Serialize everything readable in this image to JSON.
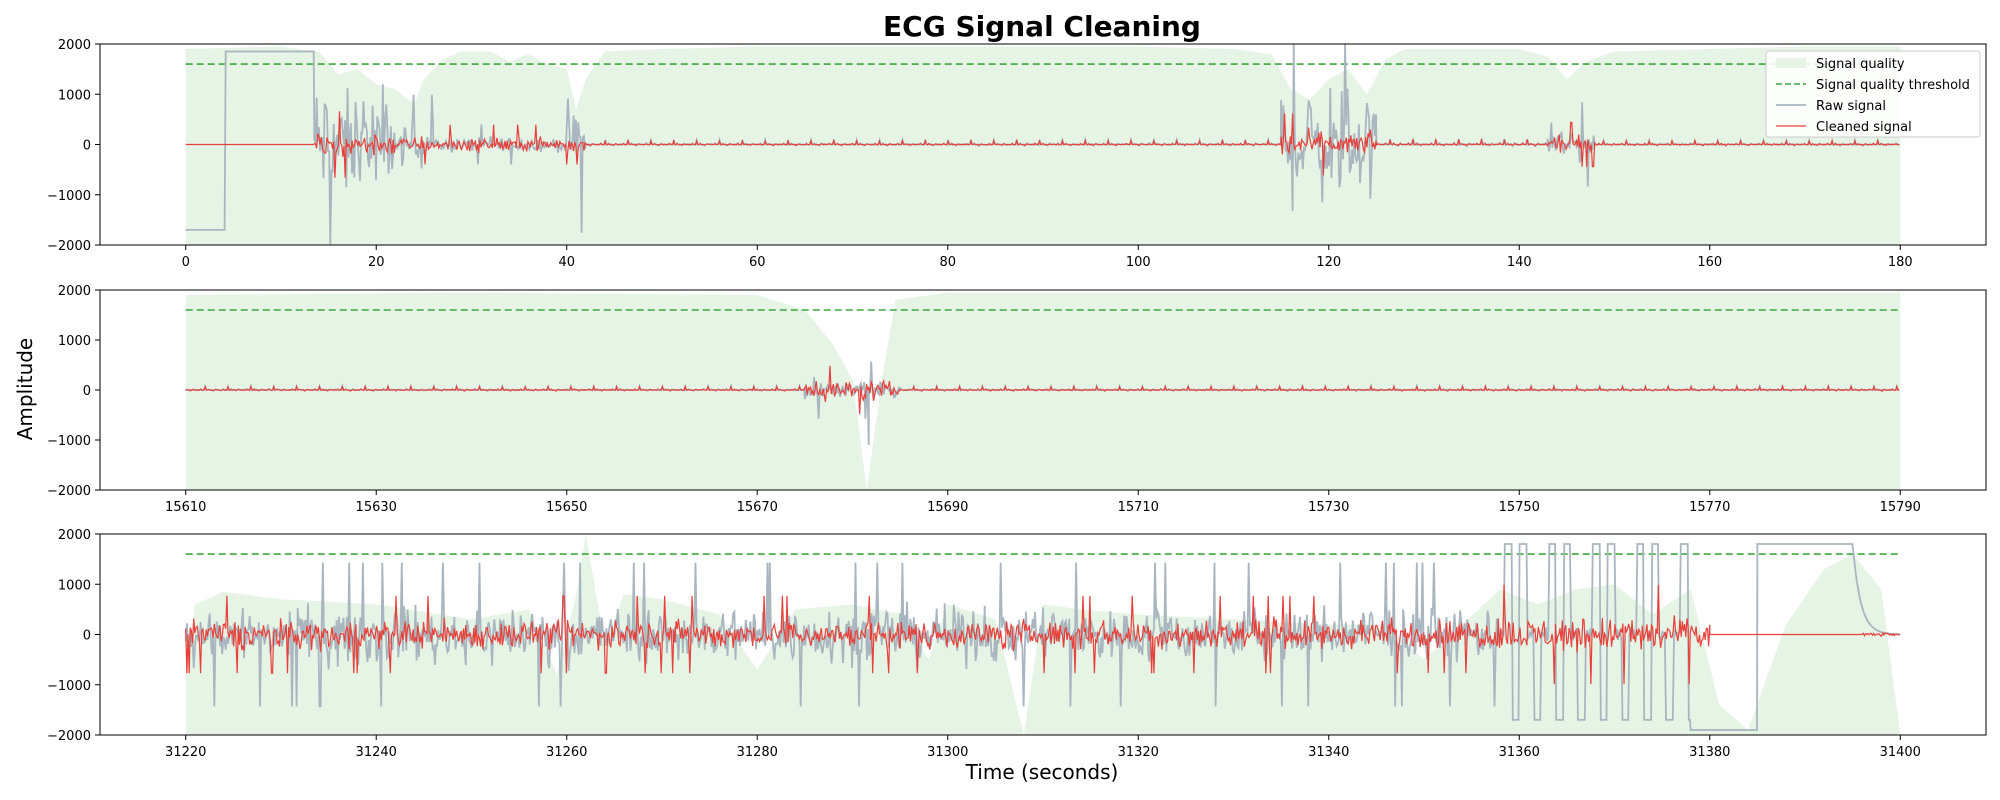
{
  "chart_data": {
    "type": "line",
    "title": "ECG Signal Cleaning",
    "xlabel": "Time (seconds)",
    "ylabel": "Amplitude",
    "grid": false,
    "legend_placement": "top-right",
    "legend": [
      "Signal quality",
      "Signal quality threshold",
      "Raw signal",
      "Cleaned signal"
    ],
    "colors": {
      "signal_quality_fill": "#e6f4e6",
      "threshold": "#3da83d",
      "raw": "#a9b6bf",
      "cleaned": "#e8403a"
    },
    "panels": [
      {
        "xlim": [
          -9,
          189
        ],
        "ylim": [
          -2000,
          2000
        ],
        "xticks": [
          0,
          20,
          40,
          60,
          80,
          100,
          120,
          140,
          160,
          180
        ],
        "xtick_labels": [
          "0",
          "20",
          "40",
          "60",
          "80",
          "100",
          "120",
          "140",
          "160",
          "180"
        ],
        "yticks": [
          -2000,
          -1000,
          0,
          1000,
          2000
        ],
        "ytick_labels": [
          "−2000",
          "−1000",
          "0",
          "1000",
          "2000"
        ],
        "x_range": [
          0,
          180
        ],
        "threshold": 1600,
        "quality": [
          [
            0,
            1900
          ],
          [
            10,
            1950
          ],
          [
            14,
            1850
          ],
          [
            16,
            1400
          ],
          [
            18,
            1500
          ],
          [
            20,
            1200
          ],
          [
            22,
            1100
          ],
          [
            24,
            800
          ],
          [
            25,
            1300
          ],
          [
            27,
            1700
          ],
          [
            29,
            1850
          ],
          [
            32,
            1850
          ],
          [
            34,
            1650
          ],
          [
            36,
            1800
          ],
          [
            38,
            1600
          ],
          [
            40,
            1500
          ],
          [
            41,
            700
          ],
          [
            42,
            1300
          ],
          [
            44,
            1850
          ],
          [
            50,
            1900
          ],
          [
            60,
            1950
          ],
          [
            80,
            1950
          ],
          [
            100,
            1950
          ],
          [
            110,
            1900
          ],
          [
            114,
            1800
          ],
          [
            116,
            1100
          ],
          [
            118,
            900
          ],
          [
            120,
            1300
          ],
          [
            122,
            1500
          ],
          [
            124,
            1000
          ],
          [
            126,
            1700
          ],
          [
            128,
            1900
          ],
          [
            140,
            1900
          ],
          [
            143,
            1750
          ],
          [
            145,
            1300
          ],
          [
            147,
            1650
          ],
          [
            150,
            1850
          ],
          [
            160,
            1900
          ],
          [
            170,
            1950
          ],
          [
            180,
            1950
          ]
        ],
        "raw_segments": [
          [
            0,
            13.5,
            [
              4.2,
              -1700,
              1850
            ],
            "flat"
          ],
          [
            13.5,
            22,
            1300,
            "noisy"
          ],
          [
            22,
            26,
            450,
            "noisy"
          ],
          [
            26,
            40,
            180,
            "noisy"
          ],
          [
            40,
            42,
            800,
            "noisy"
          ],
          [
            42,
            115,
            160,
            "ecg"
          ],
          [
            115,
            125,
            1350,
            "noisy"
          ],
          [
            125,
            143,
            200,
            "ecg"
          ],
          [
            143,
            148,
            380,
            "noisy"
          ],
          [
            148,
            180,
            140,
            "ecg"
          ]
        ],
        "clean_segments": [
          [
            0,
            13.5,
            0,
            "flat"
          ],
          [
            13.5,
            22,
            300,
            "noisy"
          ],
          [
            22,
            42,
            180,
            "noisy"
          ],
          [
            42,
            115,
            130,
            "ecg"
          ],
          [
            115,
            125,
            280,
            "noisy"
          ],
          [
            125,
            143,
            170,
            "ecg"
          ],
          [
            143,
            148,
            200,
            "noisy"
          ],
          [
            148,
            180,
            130,
            "ecg"
          ]
        ]
      },
      {
        "xlim": [
          15601,
          15799
        ],
        "ylim": [
          -2000,
          2000
        ],
        "xticks": [
          15610,
          15630,
          15650,
          15670,
          15690,
          15710,
          15730,
          15750,
          15770,
          15790
        ],
        "xtick_labels": [
          "15610",
          "15630",
          "15650",
          "15670",
          "15690",
          "15710",
          "15730",
          "15750",
          "15770",
          "15790"
        ],
        "yticks": [
          -2000,
          -1000,
          0,
          1000,
          2000
        ],
        "ytick_labels": [
          "−2000",
          "−1000",
          "0",
          "1000",
          "2000"
        ],
        "x_range": [
          15610,
          15790
        ],
        "threshold": 1600,
        "quality": [
          [
            15610,
            1900
          ],
          [
            15640,
            1950
          ],
          [
            15670,
            1900
          ],
          [
            15675,
            1600
          ],
          [
            15678,
            900
          ],
          [
            15680,
            200
          ],
          [
            15681.5,
            -2000
          ],
          [
            15683,
            100
          ],
          [
            15684.5,
            1800
          ],
          [
            15690,
            1950
          ],
          [
            15720,
            1950
          ],
          [
            15760,
            1950
          ],
          [
            15790,
            1950
          ]
        ],
        "raw_segments": [
          [
            15610,
            15675,
            130,
            "ecg"
          ],
          [
            15675,
            15685,
            260,
            "noisy"
          ],
          [
            15685,
            15790,
            130,
            "ecg"
          ]
        ],
        "clean_segments": [
          [
            15610,
            15675,
            120,
            "ecg"
          ],
          [
            15675,
            15685,
            220,
            "noisy"
          ],
          [
            15685,
            15790,
            120,
            "ecg"
          ]
        ],
        "spikes": [
          [
            15681.7,
            -1100
          ]
        ]
      },
      {
        "xlim": [
          31211,
          31409
        ],
        "ylim": [
          -2000,
          2000
        ],
        "xticks": [
          31220,
          31240,
          31260,
          31280,
          31300,
          31320,
          31340,
          31360,
          31380,
          31400
        ],
        "xtick_labels": [
          "31220",
          "31240",
          "31260",
          "31280",
          "31300",
          "31320",
          "31340",
          "31360",
          "31380",
          "31400"
        ],
        "yticks": [
          -2000,
          -1000,
          0,
          1000,
          2000
        ],
        "ytick_labels": [
          "−2000",
          "−1000",
          "0",
          "1000",
          "2000"
        ],
        "x_range": [
          31220,
          31400
        ],
        "threshold": 1600,
        "quality": [
          [
            31220,
            -800
          ],
          [
            31221,
            600
          ],
          [
            31224,
            850
          ],
          [
            31230,
            700
          ],
          [
            31240,
            600
          ],
          [
            31250,
            300
          ],
          [
            31256,
            500
          ],
          [
            31259,
            -800
          ],
          [
            31261,
            800
          ],
          [
            31262,
            2000
          ],
          [
            31264,
            -200
          ],
          [
            31266,
            800
          ],
          [
            31270,
            700
          ],
          [
            31276,
            400
          ],
          [
            31280,
            -700
          ],
          [
            31284,
            500
          ],
          [
            31290,
            600
          ],
          [
            31295,
            400
          ],
          [
            31298,
            -500
          ],
          [
            31300,
            600
          ],
          [
            31305,
            300
          ],
          [
            31308,
            -2000
          ],
          [
            31310,
            600
          ],
          [
            31314,
            500
          ],
          [
            31320,
            400
          ],
          [
            31330,
            300
          ],
          [
            31340,
            200
          ],
          [
            31346,
            200
          ],
          [
            31350,
            -500
          ],
          [
            31354,
            200
          ],
          [
            31358,
            900
          ],
          [
            31362,
            600
          ],
          [
            31366,
            900
          ],
          [
            31370,
            1000
          ],
          [
            31374,
            400
          ],
          [
            31378,
            900
          ],
          [
            31381,
            -1400
          ],
          [
            31384,
            -1900
          ],
          [
            31388,
            200
          ],
          [
            31392,
            1300
          ],
          [
            31395,
            1600
          ],
          [
            31398,
            900
          ],
          [
            31400,
            -2000
          ]
        ],
        "raw_segments": [
          [
            31220,
            31358,
            650,
            "noisy"
          ],
          [
            31358,
            31378,
            1800,
            "square"
          ],
          [
            31378,
            31385,
            [
              31385,
              -1900,
              1800
            ],
            "flat"
          ],
          [
            31385,
            31400,
            [
              31395,
              1800,
              0
            ],
            "decay"
          ]
        ],
        "clean_segments": [
          [
            31220,
            31356,
            350,
            "noisy"
          ],
          [
            31356,
            31380,
            450,
            "noisy"
          ],
          [
            31380,
            31396,
            0,
            "flat"
          ],
          [
            31396,
            31400,
            40,
            "noisy"
          ]
        ]
      }
    ]
  }
}
